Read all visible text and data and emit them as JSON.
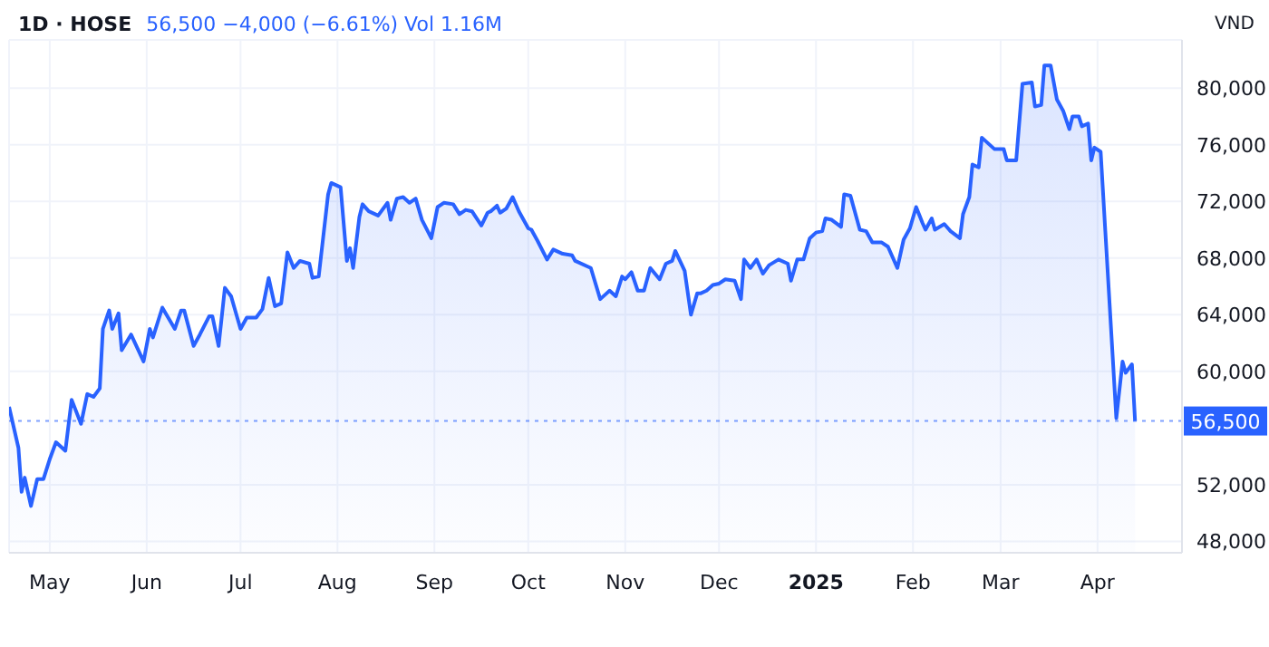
{
  "chart_data": {
    "type": "area",
    "title": "1D · HOSE",
    "subtitle": "56,500 −4,000 (−6.61%) Vol 1.16M",
    "ylabel": "VND",
    "x": [
      "2024-04-18",
      "2024-04-21",
      "2024-04-22",
      "2024-04-23",
      "2024-04-25",
      "2024-04-27",
      "2024-04-29",
      "2024-05-01",
      "2024-05-03",
      "2024-05-06",
      "2024-05-08",
      "2024-05-11",
      "2024-05-13",
      "2024-05-15",
      "2024-05-17",
      "2024-05-18",
      "2024-05-20",
      "2024-05-21",
      "2024-05-23",
      "2024-05-24",
      "2024-05-27",
      "2024-05-31",
      "2024-06-02",
      "2024-06-03",
      "2024-06-06",
      "2024-06-10",
      "2024-06-12",
      "2024-06-13",
      "2024-06-16",
      "2024-06-18",
      "2024-06-21",
      "2024-06-22",
      "2024-06-24",
      "2024-06-26",
      "2024-06-28",
      "2024-07-01",
      "2024-07-03",
      "2024-07-06",
      "2024-07-08",
      "2024-07-10",
      "2024-07-12",
      "2024-07-14",
      "2024-07-16",
      "2024-07-18",
      "2024-07-20",
      "2024-07-23",
      "2024-07-24",
      "2024-07-26",
      "2024-07-29",
      "2024-07-30",
      "2024-08-02",
      "2024-08-04",
      "2024-08-05",
      "2024-08-06",
      "2024-08-08",
      "2024-08-09",
      "2024-08-11",
      "2024-08-14",
      "2024-08-17",
      "2024-08-18",
      "2024-08-20",
      "2024-08-22",
      "2024-08-24",
      "2024-08-26",
      "2024-08-28",
      "2024-08-31",
      "2024-09-02",
      "2024-09-04",
      "2024-09-07",
      "2024-09-09",
      "2024-09-11",
      "2024-09-13",
      "2024-09-16",
      "2024-09-18",
      "2024-09-19",
      "2024-09-21",
      "2024-09-22",
      "2024-09-24",
      "2024-09-26",
      "2024-09-28",
      "2024-10-01",
      "2024-10-02",
      "2024-10-04",
      "2024-10-07",
      "2024-10-09",
      "2024-10-12",
      "2024-10-15",
      "2024-10-16",
      "2024-10-21",
      "2024-10-24",
      "2024-10-26",
      "2024-10-27",
      "2024-10-29",
      "2024-10-31",
      "2024-11-01",
      "2024-11-03",
      "2024-11-05",
      "2024-11-07",
      "2024-11-09",
      "2024-11-12",
      "2024-11-14",
      "2024-11-16",
      "2024-11-17",
      "2024-11-20",
      "2024-11-22",
      "2024-11-24",
      "2024-11-25",
      "2024-11-27",
      "2024-11-29",
      "2024-12-01",
      "2024-12-03",
      "2024-12-06",
      "2024-12-08",
      "2024-12-09",
      "2024-12-11",
      "2024-12-13",
      "2024-12-15",
      "2024-12-17",
      "2024-12-20",
      "2024-12-23",
      "2024-12-24",
      "2024-12-26",
      "2024-12-28",
      "2024-12-30",
      "2025-01-01",
      "2025-01-03",
      "2025-01-04",
      "2025-01-06",
      "2025-01-09",
      "2025-01-10",
      "2025-01-12",
      "2025-01-15",
      "2025-01-17",
      "2025-01-19",
      "2025-01-22",
      "2025-01-24",
      "2025-01-27",
      "2025-01-29",
      "2025-01-31",
      "2025-02-02",
      "2025-02-04",
      "2025-02-05",
      "2025-02-07",
      "2025-02-08",
      "2025-02-11",
      "2025-02-13",
      "2025-02-16",
      "2025-02-17",
      "2025-02-19",
      "2025-02-20",
      "2025-02-22",
      "2025-02-23",
      "2025-02-25",
      "2025-02-27",
      "2025-03-02",
      "2025-03-03",
      "2025-03-06",
      "2025-03-08",
      "2025-03-11",
      "2025-03-12",
      "2025-03-14",
      "2025-03-15",
      "2025-03-17",
      "2025-03-19",
      "2025-03-21",
      "2025-03-23",
      "2025-03-24",
      "2025-03-26",
      "2025-03-27",
      "2025-03-29",
      "2025-03-30",
      "2025-03-31",
      "2025-04-02",
      "2025-04-07",
      "2025-04-09",
      "2025-04-10",
      "2025-04-12",
      "2025-04-13"
    ],
    "series": [
      {
        "color": "#2962ff",
        "values": [
          57500,
          54600,
          51500,
          52500,
          50500,
          52400,
          52400,
          53800,
          55000,
          54400,
          58000,
          56300,
          58400,
          58200,
          58800,
          63000,
          64300,
          63000,
          64100,
          61500,
          62600,
          60700,
          63000,
          62400,
          64500,
          63000,
          64300,
          64300,
          61800,
          62600,
          63900,
          63900,
          61800,
          65900,
          65300,
          63000,
          63800,
          63800,
          64400,
          66600,
          64600,
          64800,
          68400,
          67300,
          67800,
          67600,
          66600,
          66700,
          72500,
          73300,
          73000,
          67800,
          68700,
          67300,
          70900,
          71800,
          71300,
          71000,
          71900,
          70700,
          72200,
          72300,
          71900,
          72200,
          70700,
          69400,
          71600,
          71900,
          71800,
          71100,
          71400,
          71300,
          70300,
          71200,
          71300,
          71700,
          71200,
          71500,
          72300,
          71300,
          70100,
          70000,
          69200,
          67900,
          68600,
          68300,
          68200,
          67800,
          67300,
          65100,
          65500,
          65700,
          65300,
          66700,
          66500,
          67000,
          65700,
          65700,
          67300,
          66500,
          67600,
          67800,
          68500,
          67100,
          64000,
          65500,
          65500,
          65700,
          66100,
          66200,
          66500,
          66400,
          65100,
          67900,
          67300,
          67900,
          66900,
          67500,
          67900,
          67600,
          66400,
          67900,
          67900,
          69400,
          69800,
          69900,
          70800,
          70700,
          70200,
          72500,
          72400,
          70000,
          69900,
          69100,
          69100,
          68800,
          67300,
          69300,
          70100,
          71600,
          70500,
          70000,
          70800,
          70000,
          70400,
          69900,
          69400,
          71100,
          72300,
          74600,
          74400,
          76500,
          76100,
          75700,
          75700,
          74900,
          74900,
          80300,
          80400,
          78700,
          78800,
          81600,
          81600,
          79200,
          78400,
          77100,
          78000,
          78000,
          77300,
          77500,
          74900,
          75800,
          75500,
          56700,
          60700,
          59900,
          60500,
          56500
        ]
      }
    ],
    "xlim": [
      "2024-04-18",
      "2025-04-28"
    ],
    "xticks": [
      {
        "value": "2024-05-01",
        "label": "May"
      },
      {
        "value": "2024-06-01",
        "label": "Jun"
      },
      {
        "value": "2024-07-01",
        "label": "Jul"
      },
      {
        "value": "2024-08-01",
        "label": "Aug"
      },
      {
        "value": "2024-09-01",
        "label": "Sep"
      },
      {
        "value": "2024-10-01",
        "label": "Oct"
      },
      {
        "value": "2024-11-01",
        "label": "Nov"
      },
      {
        "value": "2024-12-01",
        "label": "Dec"
      },
      {
        "value": "2025-01-01",
        "label": "2025"
      },
      {
        "value": "2025-02-01",
        "label": "Feb"
      },
      {
        "value": "2025-03-01",
        "label": "Mar"
      },
      {
        "value": "2025-04-01",
        "label": "Apr"
      }
    ],
    "ylim": [
      47200,
      83400
    ],
    "yticks": [
      {
        "value": 48000,
        "label": "48,000"
      },
      {
        "value": 52000,
        "label": "52,000"
      },
      {
        "value": 60000,
        "label": "60,000"
      },
      {
        "value": 64000,
        "label": "64,000"
      },
      {
        "value": 68000,
        "label": "68,000"
      },
      {
        "value": 72000,
        "label": "72,000"
      },
      {
        "value": 76000,
        "label": "76,000"
      },
      {
        "value": 80000,
        "label": "80,000"
      }
    ],
    "grid": true,
    "ref_lines": [
      {
        "axis": "y",
        "value": 56500,
        "label": "56,500",
        "color": "#2962ff",
        "line_style": "dotted"
      }
    ]
  }
}
